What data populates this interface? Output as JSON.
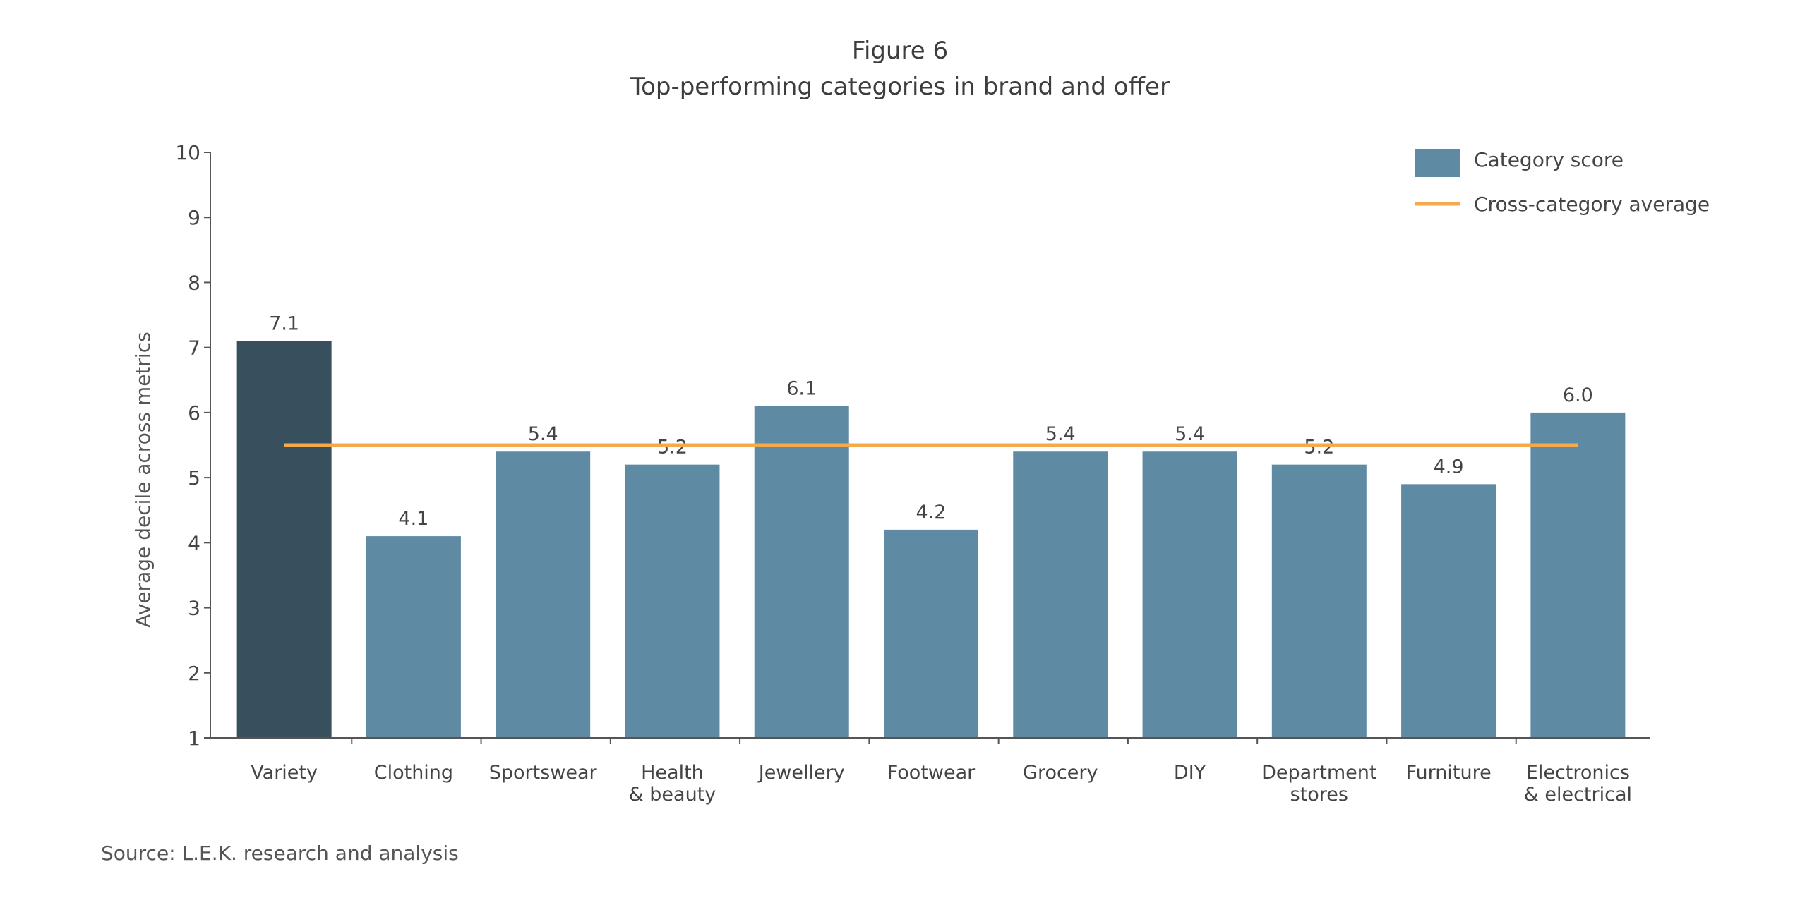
{
  "figure_label": "Figure 6",
  "source": "Source: L.E.K. research and analysis",
  "colors": {
    "highlight_bar": "#384f5e",
    "bar": "#5e8aa4",
    "average_line": "#f4a94b",
    "axis": "#555555",
    "text": "#444444"
  },
  "chart_data": {
    "type": "bar",
    "title": "Top-performing categories in brand and offer",
    "xlabel": "",
    "ylabel": "Average decile across metrics",
    "ylim": [
      1,
      10
    ],
    "yticks": [
      "1",
      "2",
      "3",
      "4",
      "5",
      "6",
      "7",
      "8",
      "9",
      "10"
    ],
    "categories": [
      [
        "Variety"
      ],
      [
        "Clothing"
      ],
      [
        "Sportswear"
      ],
      [
        "Health",
        "& beauty"
      ],
      [
        "Jewellery"
      ],
      [
        "Footwear"
      ],
      [
        "Grocery"
      ],
      [
        "DIY"
      ],
      [
        "Department",
        "stores"
      ],
      [
        "Furniture"
      ],
      [
        "Electronics",
        "& electrical"
      ]
    ],
    "series": [
      {
        "name": "Category score",
        "values": [
          7.1,
          4.1,
          5.4,
          5.2,
          6.1,
          4.2,
          5.4,
          5.4,
          5.2,
          4.9,
          6.0
        ],
        "labels": [
          "7.1",
          "4.1",
          "5.4",
          "5.2",
          "6.1",
          "4.2",
          "5.4",
          "5.4",
          "5.2",
          "4.9",
          "6.0"
        ],
        "highlight_index": 0
      }
    ],
    "reference_line": {
      "name": "Cross-category average",
      "value": 5.5
    },
    "legend": {
      "position": "top-right",
      "entries": [
        "Category score",
        "Cross-category average"
      ]
    },
    "grid": false
  }
}
